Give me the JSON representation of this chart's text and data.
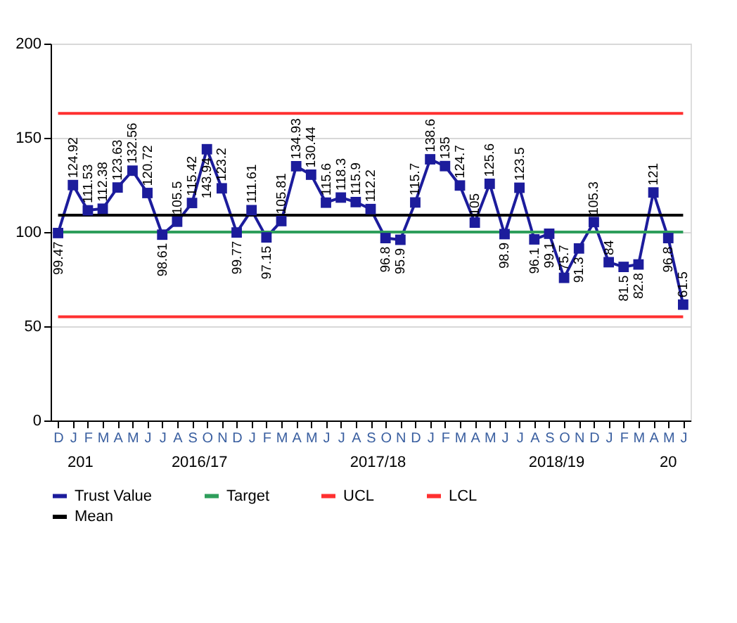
{
  "chart_data": {
    "type": "line",
    "categories": [
      "D",
      "J",
      "F",
      "M",
      "A",
      "M",
      "J",
      "J",
      "A",
      "S",
      "O",
      "N",
      "D",
      "J",
      "F",
      "M",
      "A",
      "M",
      "J",
      "J",
      "A",
      "S",
      "O",
      "N",
      "D",
      "J",
      "F",
      "M",
      "A",
      "M",
      "J",
      "J",
      "A",
      "S",
      "O",
      "N",
      "D",
      "J",
      "F",
      "M",
      "A",
      "M",
      "J"
    ],
    "series": [
      {
        "name": "Trust Value",
        "color": "#1c1c9c",
        "marker": "square",
        "values": [
          99.47,
          124.92,
          111.53,
          112.38,
          123.63,
          132.56,
          120.72,
          98.61,
          105.5,
          115.42,
          143.94,
          123.2,
          99.77,
          111.61,
          97.15,
          105.81,
          134.93,
          130.44,
          115.6,
          118.3,
          115.9,
          112.2,
          96.8,
          95.9,
          115.7,
          138.6,
          135,
          124.7,
          105,
          125.6,
          98.9,
          123.5,
          96.1,
          99.1,
          75.7,
          91.3,
          105.3,
          84,
          81.5,
          82.8,
          121,
          96.8,
          61.5
        ],
        "value_labels": [
          "99.47",
          "124.92",
          "111.53",
          "112.38",
          "123.63",
          "132.56",
          "120.72",
          "98.61",
          "105.5",
          "115.42",
          "143.94",
          "123.2",
          "99.77",
          "111.61",
          "97.15",
          "105.81",
          "134.93",
          "130.44",
          "115.6",
          "118.3",
          "115.9",
          "112.2",
          "96.8",
          "95.9",
          "115.7",
          "138.6",
          "135",
          "124.7",
          "105",
          "125.6",
          "98.9",
          "123.5",
          "96.1",
          "99.1",
          "75.7",
          "91.3",
          "105.3",
          "84",
          "81.5",
          "82.8",
          "121",
          "96.8",
          "61.5"
        ]
      },
      {
        "name": "Target",
        "color": "#2e9e5b",
        "values": [
          100,
          100,
          100,
          100,
          100,
          100,
          100,
          100,
          100,
          100,
          100,
          100,
          100,
          100,
          100,
          100,
          100,
          100,
          100,
          100,
          100,
          100,
          100,
          100,
          100,
          100,
          100,
          100,
          100,
          100,
          100,
          100,
          100,
          100,
          100,
          100,
          100,
          100,
          100,
          100,
          100,
          100,
          100
        ]
      },
      {
        "name": "UCL",
        "color": "#ff3030",
        "values": [
          163,
          163,
          163,
          163,
          163,
          163,
          163,
          163,
          163,
          163,
          163,
          163,
          163,
          163,
          163,
          163,
          163,
          163,
          163,
          163,
          163,
          163,
          163,
          163,
          163,
          163,
          163,
          163,
          163,
          163,
          163,
          163,
          163,
          163,
          163,
          163,
          163,
          163,
          163,
          163,
          163,
          163,
          163
        ]
      },
      {
        "name": "LCL",
        "color": "#ff3030",
        "values": [
          55,
          55,
          55,
          55,
          55,
          55,
          55,
          55,
          55,
          55,
          55,
          55,
          55,
          55,
          55,
          55,
          55,
          55,
          55,
          55,
          55,
          55,
          55,
          55,
          55,
          55,
          55,
          55,
          55,
          55,
          55,
          55,
          55,
          55,
          55,
          55,
          55,
          55,
          55,
          55,
          55,
          55,
          55
        ]
      },
      {
        "name": "Mean",
        "color": "#000000",
        "values": [
          109,
          109,
          109,
          109,
          109,
          109,
          109,
          109,
          109,
          109,
          109,
          109,
          109,
          109,
          109,
          109,
          109,
          109,
          109,
          109,
          109,
          109,
          109,
          109,
          109,
          109,
          109,
          109,
          109,
          109,
          109,
          109,
          109,
          109,
          109,
          109,
          109,
          109,
          109,
          109,
          109,
          109,
          109
        ]
      }
    ],
    "annotations": [
      "201",
      "2016/17",
      "2017/18",
      "2018/19",
      "20"
    ],
    "ylim": [
      0,
      200
    ],
    "yticks": [
      0,
      50,
      100,
      150,
      200
    ],
    "grid": "y",
    "legend": "bottom",
    "line_style": "solid"
  }
}
